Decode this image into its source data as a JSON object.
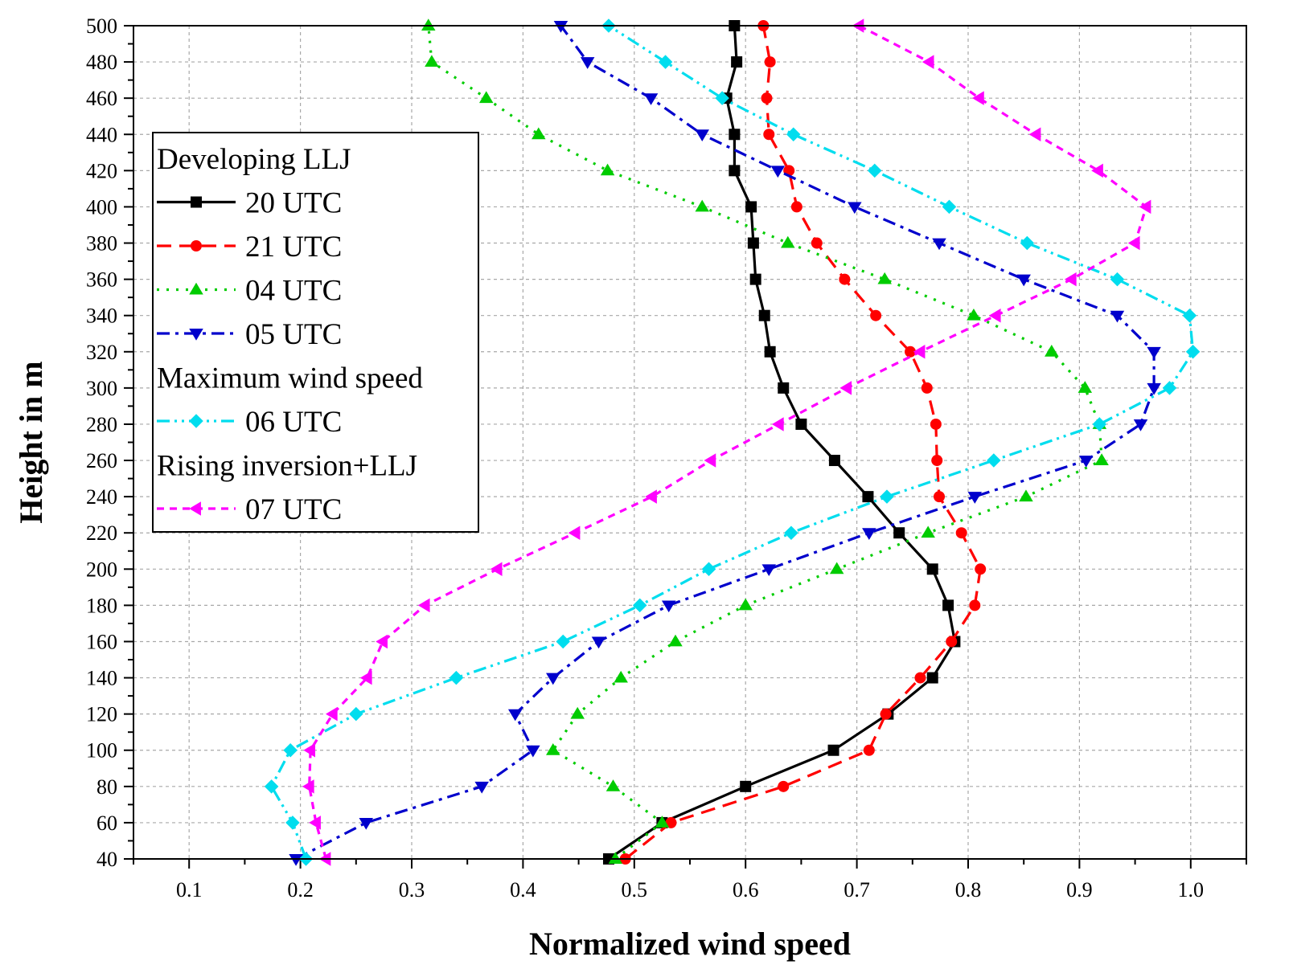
{
  "chart_data": {
    "type": "line",
    "title": "",
    "xlabel": "Normalized wind speed",
    "ylabel": "Height in m",
    "xlim": [
      0.05,
      1.05
    ],
    "ylim": [
      40,
      500
    ],
    "xticks": [
      0.1,
      0.2,
      0.3,
      0.4,
      0.5,
      0.6,
      0.7,
      0.8,
      0.9,
      1.0
    ],
    "xtick_labels": [
      "0.1",
      "0.2",
      "0.3",
      "0.4",
      "0.5",
      "0.6",
      "0.7",
      "0.8",
      "0.9",
      "1.0"
    ],
    "yticks": [
      40,
      60,
      80,
      100,
      120,
      140,
      160,
      180,
      200,
      220,
      240,
      260,
      280,
      300,
      320,
      340,
      360,
      380,
      400,
      420,
      440,
      460,
      480,
      500
    ],
    "ytick_labels": [
      "40",
      "60",
      "80",
      "100",
      "120",
      "140",
      "160",
      "180",
      "200",
      "220",
      "240",
      "260",
      "280",
      "300",
      "320",
      "340",
      "360",
      "380",
      "400",
      "420",
      "440",
      "460",
      "480",
      "500"
    ],
    "grid": true,
    "legend_position": "top-left",
    "legend": [
      {
        "kind": "header",
        "text": "Developing LLJ"
      },
      {
        "kind": "series",
        "series_index": 0
      },
      {
        "kind": "series",
        "series_index": 1
      },
      {
        "kind": "series",
        "series_index": 2
      },
      {
        "kind": "series",
        "series_index": 3
      },
      {
        "kind": "header",
        "text": "Maximum wind speed"
      },
      {
        "kind": "series",
        "series_index": 4
      },
      {
        "kind": "header",
        "text": "Rising inversion+LLJ"
      },
      {
        "kind": "series",
        "series_index": 5
      }
    ],
    "heights": [
      40,
      60,
      80,
      100,
      120,
      140,
      160,
      180,
      200,
      220,
      240,
      260,
      280,
      300,
      320,
      340,
      360,
      380,
      400,
      420,
      440,
      460,
      480,
      500
    ],
    "series": [
      {
        "name": "20 UTC",
        "color": "#000000",
        "marker": "square",
        "dash": "solid",
        "x": [
          0.477,
          0.525,
          0.6,
          0.679,
          0.728,
          0.768,
          0.788,
          0.782,
          0.768,
          0.738,
          0.71,
          0.68,
          0.65,
          0.634,
          0.622,
          0.617,
          0.609,
          0.607,
          0.605,
          0.59,
          0.59,
          0.583,
          0.592,
          0.59
        ]
      },
      {
        "name": "21 UTC",
        "color": "#ff0000",
        "marker": "circle",
        "dash": "dashed",
        "x": [
          0.492,
          0.533,
          0.634,
          0.711,
          0.726,
          0.757,
          0.785,
          0.806,
          0.811,
          0.794,
          0.774,
          0.772,
          0.771,
          0.763,
          0.748,
          0.717,
          0.689,
          0.664,
          0.646,
          0.639,
          0.621,
          0.619,
          0.622,
          0.616
        ]
      },
      {
        "name": "04 UTC",
        "color": "#00cc00",
        "marker": "triangle-up",
        "dash": "dotted",
        "x": [
          0.483,
          0.525,
          0.481,
          0.427,
          0.449,
          0.488,
          0.537,
          0.6,
          0.682,
          0.764,
          0.852,
          0.92,
          0.918,
          0.905,
          0.875,
          0.805,
          0.725,
          0.638,
          0.561,
          0.476,
          0.414,
          0.367,
          0.318,
          0.315
        ]
      },
      {
        "name": "05 UTC",
        "color": "#0000cc",
        "marker": "triangle-down",
        "dash": "dashdot",
        "x": [
          0.196,
          0.259,
          0.363,
          0.409,
          0.393,
          0.427,
          0.468,
          0.531,
          0.621,
          0.711,
          0.806,
          0.906,
          0.955,
          0.967,
          0.967,
          0.934,
          0.85,
          0.774,
          0.698,
          0.629,
          0.561,
          0.515,
          0.458,
          0.434
        ]
      },
      {
        "name": "06 UTC",
        "color": "#00ddee",
        "marker": "diamond",
        "dash": "dashdotdot",
        "x": [
          0.205,
          0.193,
          0.174,
          0.191,
          0.25,
          0.34,
          0.436,
          0.505,
          0.567,
          0.641,
          0.727,
          0.823,
          0.918,
          0.981,
          1.002,
          0.999,
          0.934,
          0.853,
          0.783,
          0.716,
          0.643,
          0.579,
          0.528,
          0.477
        ]
      },
      {
        "name": "07 UTC",
        "color": "#ff00ff",
        "marker": "triangle-left",
        "dash": "shortdash",
        "x": [
          0.223,
          0.214,
          0.208,
          0.209,
          0.229,
          0.26,
          0.274,
          0.312,
          0.377,
          0.447,
          0.516,
          0.569,
          0.63,
          0.691,
          0.757,
          0.825,
          0.893,
          0.95,
          0.96,
          0.917,
          0.861,
          0.81,
          0.765,
          0.702
        ]
      }
    ]
  }
}
